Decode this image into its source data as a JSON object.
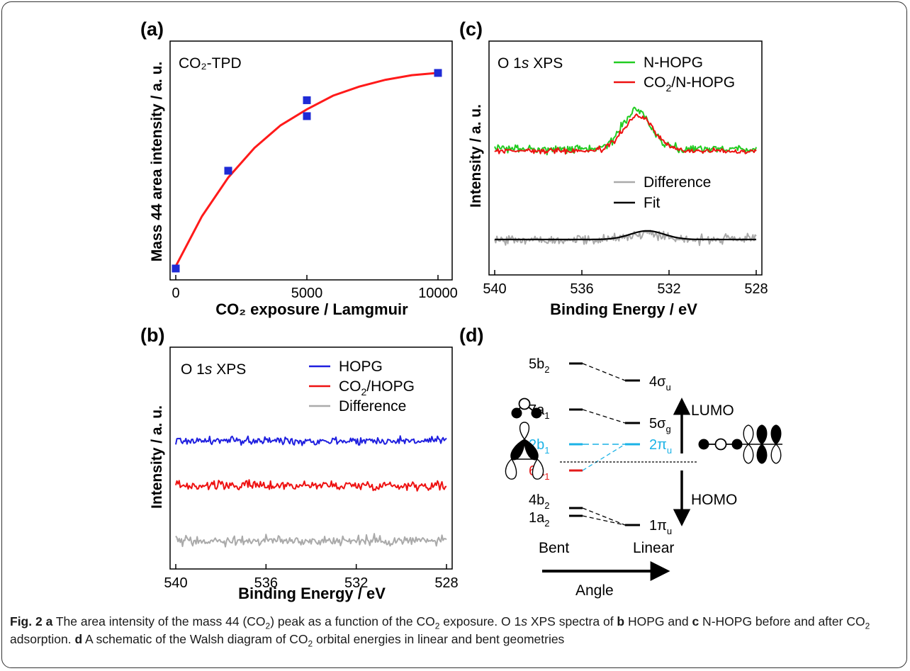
{
  "panels": {
    "a": {
      "label": "(a)",
      "annotation": "CO₂-TPD",
      "ylabel": "Mass 44 area intensity / a. u.",
      "xlabel": "CO₂ exposure / Lamgmuir",
      "xticks": [
        "0",
        "5000",
        "10000"
      ]
    },
    "b": {
      "label": "(b)",
      "annotation": "O 1s XPS",
      "ylabel": "Intensity / a. u.",
      "xlabel": "Binding Energy / eV",
      "xticks": [
        "540",
        "536",
        "532",
        "528"
      ],
      "legend": [
        "HOPG",
        "CO₂/HOPG",
        "Difference"
      ]
    },
    "c": {
      "label": "(c)",
      "annotation": "O 1s XPS",
      "ylabel": "Intensity / a. u.",
      "xlabel": "Binding Energy / eV",
      "xticks": [
        "540",
        "536",
        "532",
        "528"
      ],
      "legend": [
        "N-HOPG",
        "CO₂/N-HOPG",
        "Difference",
        "Fit"
      ]
    },
    "d": {
      "label": "(d)",
      "bent_levels": [
        "5b₂",
        "7a₁",
        "2b₁",
        "6a₁",
        "4b₂",
        "1a₂"
      ],
      "linear_levels": [
        "4σu",
        "5σg",
        "2πu",
        "1πu"
      ],
      "lumo": "LUMO",
      "homo": "HOMO",
      "bent_label": "Bent",
      "linear_label": "Linear",
      "angle_label": "Angle"
    }
  },
  "chart_data": [
    {
      "type": "scatter",
      "panel": "a",
      "series": [
        {
          "marker": "square",
          "color": "#1f2bd6",
          "points": [
            [
              0,
              0.0
            ],
            [
              2000,
              0.43
            ],
            [
              5000,
              0.67
            ],
            [
              5000,
              0.74
            ],
            [
              10000,
              0.86
            ]
          ]
        },
        {
          "type": "line",
          "color": "#ff1a1a",
          "fit": "saturation",
          "points": [
            [
              0,
              0.01
            ],
            [
              1000,
              0.23
            ],
            [
              2000,
              0.4
            ],
            [
              3000,
              0.53
            ],
            [
              4000,
              0.63
            ],
            [
              5000,
              0.7
            ],
            [
              6000,
              0.76
            ],
            [
              7000,
              0.8
            ],
            [
              8000,
              0.83
            ],
            [
              9000,
              0.85
            ],
            [
              10000,
              0.86
            ]
          ]
        }
      ],
      "xlim": [
        0,
        10000
      ],
      "ylim": [
        -0.05,
        1.0
      ]
    },
    {
      "type": "line",
      "panel": "b",
      "xlim": [
        540,
        528
      ],
      "series": [
        {
          "name": "HOPG",
          "color": "#1f1fdf",
          "offset": 2.0,
          "noise": 0.35,
          "peak": 0
        },
        {
          "name": "CO₂/HOPG",
          "color": "#ee1111",
          "offset": 1.0,
          "noise": 0.4,
          "peak": 0
        },
        {
          "name": "Difference",
          "color": "#aaaaaa",
          "offset": 0.0,
          "noise": 0.45,
          "peak": 0
        }
      ]
    },
    {
      "type": "line",
      "panel": "c",
      "xlim": [
        540,
        528
      ],
      "series": [
        {
          "name": "N-HOPG",
          "color": "#22cc22",
          "offset": 2.0,
          "noise": 0.3,
          "peak": 1.9,
          "center": 533.5,
          "width": 0.9
        },
        {
          "name": "CO₂/N-HOPG",
          "color": "#ee1111",
          "offset": 2.0,
          "noise": 0.18,
          "peak": 1.7,
          "center": 533.4,
          "width": 1.0
        },
        {
          "name": "Difference",
          "color": "#aaaaaa",
          "offset": 0.0,
          "noise": 0.35,
          "peak": 0.3,
          "center": 533.0,
          "width": 1.1
        },
        {
          "name": "Fit",
          "color": "#000000",
          "offset": 0.0,
          "noise": 0,
          "peak": 0.42,
          "center": 533.0,
          "width": 1.1
        }
      ]
    }
  ],
  "caption": {
    "fig_label": "Fig. 2",
    "a": "a",
    "part1": " The area intensity of the mass 44 (CO",
    "part2": ") peak as a function of the CO",
    "part3": " exposure. O 1",
    "s": "s",
    "part4": " XPS spectra of ",
    "b": "b",
    "part5": " HOPG and ",
    "c": "c",
    "part6": " N-HOPG before and after CO",
    "part7": " adsorption. ",
    "d": "d",
    "part8": " A schematic of the Walsh diagram of CO",
    "part9": " orbital energies in linear and bent geometries",
    "sub2": "2"
  }
}
